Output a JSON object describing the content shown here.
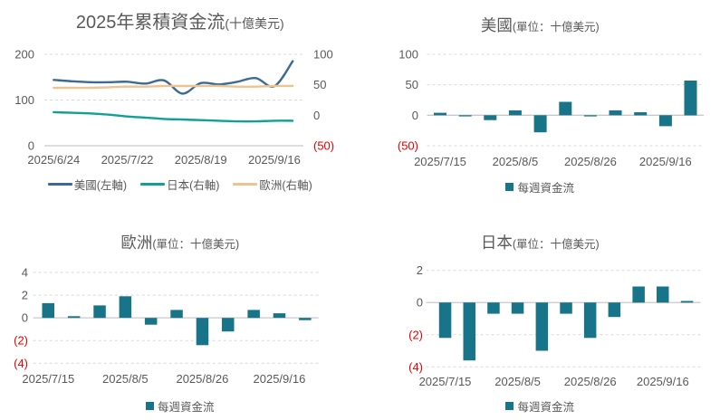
{
  "colors": {
    "text": "#595959",
    "negative_tick": "#e60000",
    "gridline": "#d9d9d9",
    "zero_line": "#c9c9c9",
    "bar_teal": "#187489"
  },
  "chart_data": [
    {
      "type": "line",
      "title": "2025年累積資金流",
      "subtitle": "(十億美元)",
      "x_tick_labels": [
        "2025/6/24",
        "2025/7/22",
        "2025/8/19",
        "2025/9/16"
      ],
      "x_tick_indices": [
        0,
        4,
        8,
        12
      ],
      "left_axis_ticks": [
        200,
        100,
        0
      ],
      "right_axis_ticks": [
        100,
        50,
        0,
        -50
      ],
      "left_axis_range": [
        0,
        200
      ],
      "right_axis_range": [
        -50,
        100
      ],
      "grid": "horizontal-dashed",
      "legend_position": "bottom",
      "series": [
        {
          "name": "美國(左軸)",
          "axis": "left",
          "color": "#3c6a96",
          "values": [
            144,
            141,
            139,
            139,
            140,
            136,
            143,
            114,
            137,
            134,
            140,
            148,
            130,
            185
          ]
        },
        {
          "name": "日本(右軸)",
          "axis": "right",
          "color": "#12a096",
          "values": [
            5,
            4,
            3,
            1,
            -2,
            -4,
            -6,
            -7,
            -8,
            -9,
            -10,
            -10,
            -9,
            -9
          ]
        },
        {
          "name": "歐洲(右軸)",
          "axis": "right",
          "color": "#ecc491",
          "values": [
            45,
            45,
            45,
            46,
            47,
            47,
            48,
            48,
            48,
            48,
            47,
            47,
            48,
            48
          ]
        }
      ]
    },
    {
      "type": "bar",
      "title": "美國",
      "subtitle": "(單位：十億美元)",
      "legend_label": "每週資金流",
      "x_tick_labels": [
        "2025/7/15",
        "2025/8/5",
        "2025/8/26",
        "2025/9/16"
      ],
      "x_tick_indices": [
        0,
        3,
        6,
        9
      ],
      "y_ticks": [
        100,
        50,
        0,
        -50
      ],
      "ylim": [
        -50,
        100
      ],
      "values": [
        4,
        -2,
        -8,
        8,
        -28,
        22,
        -2,
        8,
        5,
        -18,
        57
      ]
    },
    {
      "type": "bar",
      "title": "歐洲",
      "subtitle": "(單位：十億美元)",
      "legend_label": "每週資金流",
      "x_tick_labels": [
        "2025/7/15",
        "2025/8/5",
        "2025/8/26",
        "2025/9/16"
      ],
      "x_tick_indices": [
        0,
        3,
        6,
        9
      ],
      "y_ticks": [
        4,
        2,
        0,
        -2,
        -4
      ],
      "ylim": [
        -4,
        4
      ],
      "values": [
        1.3,
        0.15,
        1.1,
        1.9,
        -0.6,
        0.7,
        -2.4,
        -1.2,
        0.7,
        0.4,
        -0.2
      ]
    },
    {
      "type": "bar",
      "title": "日本",
      "subtitle": "(單位：十億美元)",
      "legend_label": "每週資金流",
      "x_tick_labels": [
        "2025/7/15",
        "2025/8/5",
        "2025/8/26",
        "2025/9/16"
      ],
      "x_tick_indices": [
        0,
        3,
        6,
        9
      ],
      "y_ticks": [
        2,
        0,
        -2,
        -4
      ],
      "ylim": [
        -4,
        2
      ],
      "values": [
        -2.2,
        -3.6,
        -0.7,
        -0.7,
        -3.0,
        -0.7,
        -2.2,
        -0.9,
        1.0,
        1.0,
        0.1
      ]
    }
  ]
}
